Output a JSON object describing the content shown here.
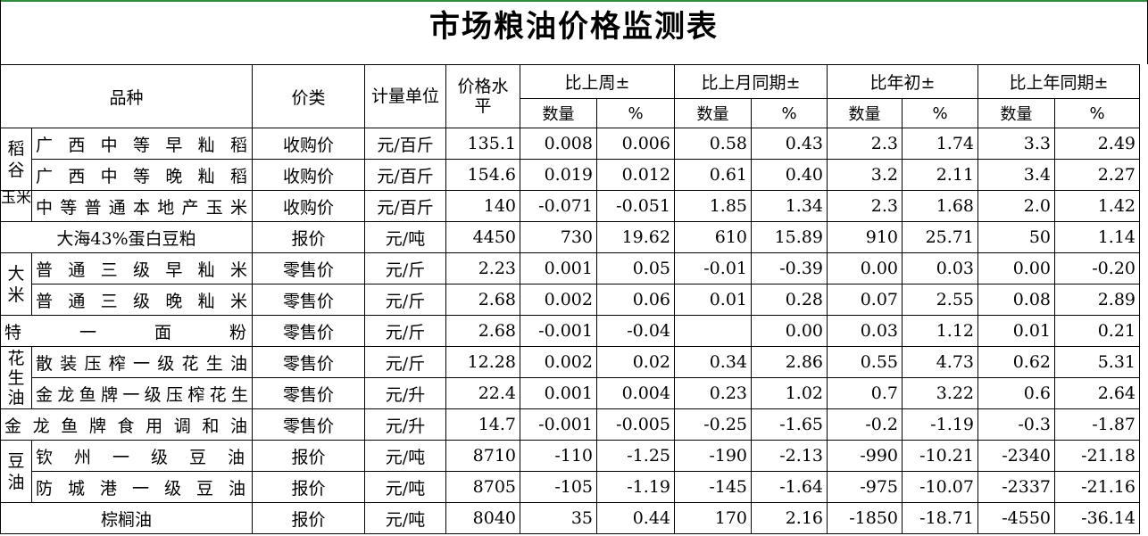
{
  "title": "市场粮油价格监测表",
  "headers": {
    "variety": "品种",
    "price_type": "价类",
    "unit": "计量单位",
    "price_level": "价格水平",
    "vs_last_week": "比上周±",
    "vs_last_month": "比上月同期±",
    "vs_year_start": "比年初±",
    "vs_last_year": "比上年同期±",
    "qty": "数量",
    "pct": "%"
  },
  "groups": {
    "rice_grain": "稻谷",
    "corn": "玉米",
    "rice": "大米",
    "peanut_oil": "花生油",
    "soy_oil": "豆油"
  },
  "rows": [
    {
      "name": "广西中等早籼稻",
      "type": "收购价",
      "unit": "元/百斤",
      "price": "135.1",
      "w_q": "0.008",
      "w_p": "0.006",
      "m_q": "0.58",
      "m_p": "0.43",
      "y_q": "2.3",
      "y_p": "1.74",
      "ly_q": "3.3",
      "ly_p": "2.49"
    },
    {
      "name": "广西中等晚籼稻",
      "type": "收购价",
      "unit": "元/百斤",
      "price": "154.6",
      "w_q": "0.019",
      "w_p": "0.012",
      "m_q": "0.61",
      "m_p": "0.40",
      "y_q": "3.2",
      "y_p": "2.11",
      "ly_q": "3.4",
      "ly_p": "2.27"
    },
    {
      "name": "中等普通本地产玉米",
      "type": "收购价",
      "unit": "元/百斤",
      "price": "140",
      "w_q": "-0.071",
      "w_p": "-0.051",
      "m_q": "1.85",
      "m_p": "1.34",
      "y_q": "2.3",
      "y_p": "1.68",
      "ly_q": "2.0",
      "ly_p": "1.42"
    },
    {
      "name": "大海43%蛋白豆粕",
      "type": "报价",
      "unit": "元/吨",
      "price": "4450",
      "w_q": "730",
      "w_p": "19.62",
      "m_q": "610",
      "m_p": "15.89",
      "y_q": "910",
      "y_p": "25.71",
      "ly_q": "50",
      "ly_p": "1.14"
    },
    {
      "name": "普通三级早籼米",
      "type": "零售价",
      "unit": "元/斤",
      "price": "2.23",
      "w_q": "0.001",
      "w_p": "0.05",
      "m_q": "-0.01",
      "m_p": "-0.39",
      "y_q": "0.00",
      "y_p": "0.03",
      "ly_q": "0.00",
      "ly_p": "-0.20"
    },
    {
      "name": "普通三级晚籼米",
      "type": "零售价",
      "unit": "元/斤",
      "price": "2.68",
      "w_q": "0.002",
      "w_p": "0.06",
      "m_q": "0.01",
      "m_p": "0.28",
      "y_q": "0.07",
      "y_p": "2.55",
      "ly_q": "0.08",
      "ly_p": "2.89"
    },
    {
      "name": "特一面粉",
      "type": "零售价",
      "unit": "元/斤",
      "price": "2.68",
      "w_q": "-0.001",
      "w_p": "-0.04",
      "m_q": "",
      "m_p": "0.00",
      "y_q": "0.03",
      "y_p": "1.12",
      "ly_q": "0.01",
      "ly_p": "0.21"
    },
    {
      "name": "散装压榨一级花生油",
      "type": "零售价",
      "unit": "元/斤",
      "price": "12.28",
      "w_q": "0.002",
      "w_p": "0.02",
      "m_q": "0.34",
      "m_p": "2.86",
      "y_q": "0.55",
      "y_p": "4.73",
      "ly_q": "0.62",
      "ly_p": "5.31"
    },
    {
      "name": "金龙鱼牌一级压榨花生",
      "type": "零售价",
      "unit": "元/升",
      "price": "22.4",
      "w_q": "0.001",
      "w_p": "0.004",
      "m_q": "0.23",
      "m_p": "1.02",
      "y_q": "0.7",
      "y_p": "3.22",
      "ly_q": "0.6",
      "ly_p": "2.64"
    },
    {
      "name": "金龙鱼牌食用调和油",
      "type": "零售价",
      "unit": "元/升",
      "price": "14.7",
      "w_q": "-0.001",
      "w_p": "-0.005",
      "m_q": "-0.25",
      "m_p": "-1.65",
      "y_q": "-0.2",
      "y_p": "-1.19",
      "ly_q": "-0.3",
      "ly_p": "-1.87"
    },
    {
      "name": "钦州一级豆油",
      "type": "报价",
      "unit": "元/吨",
      "price": "8710",
      "w_q": "-110",
      "w_p": "-1.25",
      "m_q": "-190",
      "m_p": "-2.13",
      "y_q": "-990",
      "y_p": "-10.21",
      "ly_q": "-2340",
      "ly_p": "-21.18"
    },
    {
      "name": "防城港一级豆油",
      "type": "报价",
      "unit": "元/吨",
      "price": "8705",
      "w_q": "-105",
      "w_p": "-1.19",
      "m_q": "-145",
      "m_p": "-1.64",
      "y_q": "-975",
      "y_p": "-10.07",
      "ly_q": "-2337",
      "ly_p": "-21.16"
    },
    {
      "name": "棕榈油",
      "type": "报价",
      "unit": "元/吨",
      "price": "8040",
      "w_q": "35",
      "w_p": "0.44",
      "m_q": "170",
      "m_p": "2.16",
      "y_q": "-1850",
      "y_p": "-18.71",
      "ly_q": "-4550",
      "ly_p": "-36.14"
    }
  ]
}
